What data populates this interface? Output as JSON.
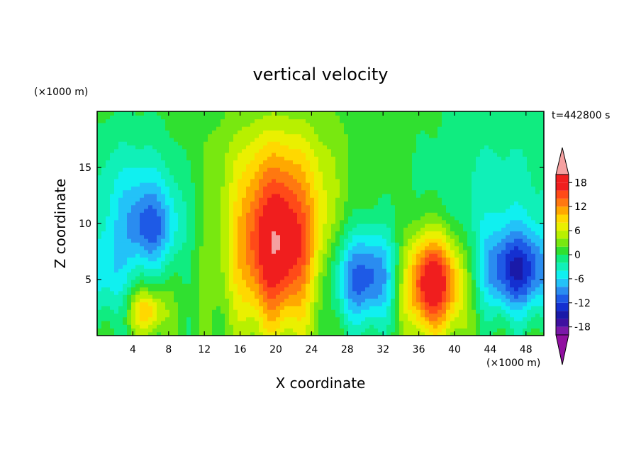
{
  "chart_data": {
    "type": "heatmap",
    "title": "vertical velocity",
    "xlabel": "X coordinate",
    "ylabel": "Z coordinate",
    "x_unit": "(×1000 m)",
    "y_unit": "(×1000 m)",
    "time_label": "t=442800 s",
    "xlim": [
      0,
      50
    ],
    "ylim": [
      0,
      20
    ],
    "x_ticks": [
      4,
      8,
      12,
      16,
      20,
      24,
      28,
      32,
      36,
      40,
      44,
      48
    ],
    "y_ticks": [
      5,
      10,
      15
    ],
    "colorbar": {
      "levels": [
        -20,
        -18,
        -16,
        -14,
        -12,
        -10,
        -8,
        -6,
        -4,
        -2,
        0,
        2,
        4,
        6,
        8,
        10,
        12,
        14,
        16,
        18,
        20
      ],
      "tick_labels": [
        "18",
        "12",
        "6",
        "0",
        "-6",
        "-12",
        "-18"
      ],
      "tick_values": [
        18,
        12,
        6,
        0,
        -6,
        -12,
        -18
      ],
      "colors": [
        "#7a18a8",
        "#3e10a0",
        "#1a1aa8",
        "#1430d0",
        "#1e5ae6",
        "#2a8cf0",
        "#23c2f8",
        "#10f0f0",
        "#10f0b8",
        "#10ec80",
        "#30e030",
        "#78e810",
        "#b8f000",
        "#eaf000",
        "#ffd800",
        "#ffa800",
        "#ff7810",
        "#ff4a18",
        "#f01e1e"
      ],
      "over_color": "#f5a0a0",
      "under_color": "#9010a0"
    },
    "features": [
      {
        "x": 20,
        "z": 9,
        "value": 20,
        "note": "updraft core"
      },
      {
        "x": 37.5,
        "z": 5,
        "value": 20,
        "note": "updraft core"
      },
      {
        "x": 30,
        "z": 5,
        "value": -12,
        "note": "downdraft"
      },
      {
        "x": 47,
        "z": 5.5,
        "value": -12,
        "note": "downdraft"
      },
      {
        "x": 5.5,
        "z": 2,
        "value": 8,
        "note": "weak updraft"
      },
      {
        "x": 6,
        "z": 9,
        "value": -8,
        "note": "weak downdraft"
      }
    ]
  }
}
